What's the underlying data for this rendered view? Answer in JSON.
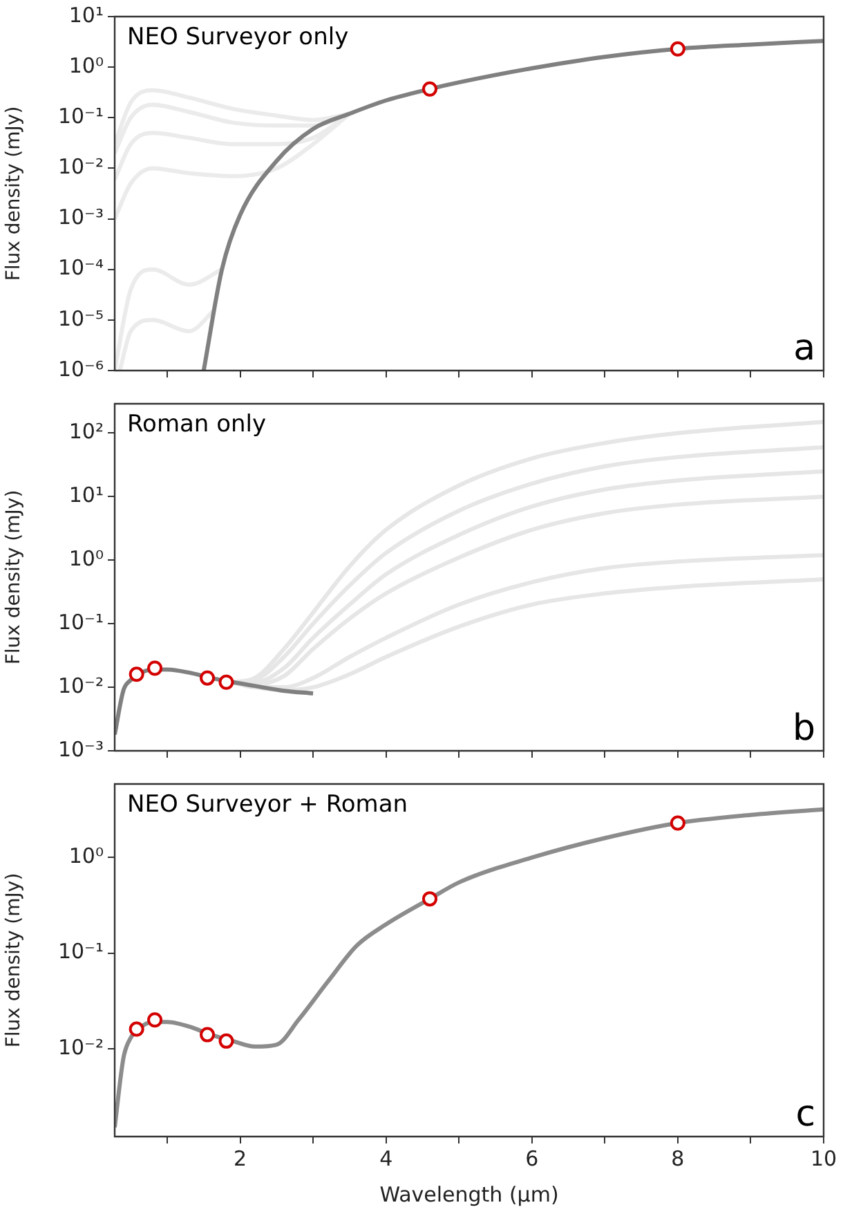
{
  "chart_data": [
    {
      "type": "line",
      "title": "NEO Surveyor only",
      "ylabel": "Flux density (mJy)",
      "annotations": [
        "a"
      ],
      "log": "y",
      "grid": false,
      "legend": false,
      "tick_labels": "y",
      "xlim": [
        0.28,
        10
      ],
      "xticks": [
        1,
        2,
        3,
        4,
        5,
        6,
        7,
        8,
        9,
        10
      ],
      "ylim": [
        1e-06,
        10
      ],
      "yticks": [
        {
          "value": 1e-06,
          "label": "10⁻⁶"
        },
        {
          "value": 1e-05,
          "label": "10⁻⁵"
        },
        {
          "value": 0.0001,
          "label": "10⁻⁴"
        },
        {
          "value": 0.001,
          "label": "10⁻³"
        },
        {
          "value": 0.01,
          "label": "10⁻²"
        },
        {
          "value": 0.1,
          "label": "10⁻¹"
        },
        {
          "value": 1,
          "label": "10⁰"
        },
        {
          "value": 10,
          "label": "10¹"
        }
      ],
      "series": [
        {
          "type": "line",
          "marker": "none",
          "color": "#ebebeb",
          "x": [
            0.28,
            0.5,
            0.8,
            1.3,
            1.9,
            2.5,
            3.0,
            3.5
          ],
          "values": [
            0.03,
            0.2,
            0.35,
            0.25,
            0.15,
            0.11,
            0.09,
            0.12
          ]
        },
        {
          "type": "line",
          "marker": "none",
          "color": "#ebebeb",
          "x": [
            0.28,
            0.5,
            0.8,
            1.3,
            1.9,
            2.5,
            3.0,
            3.5
          ],
          "values": [
            0.02,
            0.1,
            0.18,
            0.13,
            0.08,
            0.07,
            0.07,
            0.12
          ]
        },
        {
          "type": "line",
          "marker": "none",
          "color": "#ebebeb",
          "x": [
            0.28,
            0.5,
            0.8,
            1.3,
            1.9,
            2.5,
            3.0,
            3.5
          ],
          "values": [
            0.006,
            0.03,
            0.05,
            0.04,
            0.03,
            0.03,
            0.04,
            0.12
          ]
        },
        {
          "type": "line",
          "marker": "none",
          "color": "#ebebeb",
          "x": [
            0.28,
            0.5,
            0.8,
            1.3,
            1.9,
            2.5,
            3.0,
            3.5
          ],
          "values": [
            0.001,
            0.005,
            0.01,
            0.008,
            0.007,
            0.01,
            0.03,
            0.12
          ]
        },
        {
          "type": "line",
          "marker": "none",
          "color": "#ebebeb",
          "x": [
            0.28,
            0.5,
            0.8,
            1.3,
            1.75
          ],
          "values": [
            1e-06,
            4e-05,
            0.0001,
            5e-05,
            0.0001
          ]
        },
        {
          "type": "line",
          "marker": "none",
          "color": "#ebebeb",
          "x": [
            0.35,
            0.5,
            0.8,
            1.3,
            1.65
          ],
          "values": [
            1e-06,
            6e-06,
            1e-05,
            6e-06,
            1.6e-05
          ]
        },
        {
          "type": "line",
          "marker": "none",
          "color": "#808080",
          "x": [
            1.5,
            1.75,
            2,
            2.5,
            3,
            3.5,
            4,
            4.6,
            5,
            6,
            7,
            8,
            9,
            10
          ],
          "values": [
            1e-06,
            0.0001,
            0.0012,
            0.014,
            0.06,
            0.12,
            0.22,
            0.37,
            0.5,
            0.95,
            1.6,
            2.3,
            2.8,
            3.3
          ]
        },
        {
          "type": "scatter",
          "marker": "circle",
          "color": "#d40000",
          "x": [
            4.6,
            8
          ],
          "values": [
            0.37,
            2.3
          ]
        }
      ]
    },
    {
      "type": "line",
      "title": "Roman only",
      "ylabel": "Flux density (mJy)",
      "annotations": [
        "b"
      ],
      "log": "y",
      "grid": false,
      "legend": false,
      "tick_labels": "y",
      "xlim": [
        0.28,
        10
      ],
      "xticks": [
        1,
        2,
        3,
        4,
        5,
        6,
        7,
        8,
        9,
        10
      ],
      "ylim": [
        0.001,
        290
      ],
      "yticks": [
        {
          "value": 0.001,
          "label": "10⁻³"
        },
        {
          "value": 0.01,
          "label": "10⁻²"
        },
        {
          "value": 0.1,
          "label": "10⁻¹"
        },
        {
          "value": 1,
          "label": "10⁰"
        },
        {
          "value": 10,
          "label": "10¹"
        },
        {
          "value": 100,
          "label": "10²"
        }
      ],
      "series": [
        {
          "type": "line",
          "marker": "none",
          "color": "#e6e6e6",
          "x": [
            1.9,
            2.2,
            2.6,
            3,
            3.5,
            4,
            5,
            6,
            7,
            8,
            10
          ],
          "values": [
            0.012,
            0.014,
            0.04,
            0.15,
            0.8,
            3,
            15,
            40,
            70,
            100,
            150
          ]
        },
        {
          "type": "line",
          "marker": "none",
          "color": "#e6e6e6",
          "x": [
            1.9,
            2.2,
            2.6,
            3,
            3.5,
            4,
            5,
            6,
            7,
            8,
            10
          ],
          "values": [
            0.012,
            0.013,
            0.03,
            0.1,
            0.4,
            1.3,
            6,
            16,
            30,
            42,
            60
          ]
        },
        {
          "type": "line",
          "marker": "none",
          "color": "#e6e6e6",
          "x": [
            1.9,
            2.2,
            2.6,
            3,
            3.5,
            4,
            5,
            6,
            7,
            8,
            10
          ],
          "values": [
            0.012,
            0.012,
            0.02,
            0.06,
            0.2,
            0.6,
            2.5,
            7,
            13,
            18,
            25
          ]
        },
        {
          "type": "line",
          "marker": "none",
          "color": "#e6e6e6",
          "x": [
            1.9,
            2.2,
            2.6,
            3,
            3.5,
            4,
            5,
            6,
            7,
            8,
            10
          ],
          "values": [
            0.012,
            0.011,
            0.015,
            0.04,
            0.12,
            0.3,
            1.1,
            3,
            5.5,
            7.5,
            10
          ]
        },
        {
          "type": "line",
          "marker": "none",
          "color": "#e6e6e6",
          "x": [
            1.9,
            2.2,
            2.6,
            3,
            3.5,
            4,
            5,
            6,
            7,
            8,
            10
          ],
          "values": [
            0.012,
            0.01,
            0.01,
            0.014,
            0.03,
            0.06,
            0.2,
            0.45,
            0.75,
            0.95,
            1.2
          ]
        },
        {
          "type": "line",
          "marker": "none",
          "color": "#e6e6e6",
          "x": [
            1.9,
            2.2,
            2.6,
            3,
            3.5,
            4,
            5,
            6,
            7,
            8,
            10
          ],
          "values": [
            0.012,
            0.01,
            0.009,
            0.01,
            0.016,
            0.03,
            0.09,
            0.2,
            0.3,
            0.38,
            0.5
          ]
        },
        {
          "type": "line",
          "marker": "none",
          "color": "#808080",
          "x": [
            0.28,
            0.4,
            0.5,
            0.6,
            0.8,
            1.0,
            1.3,
            1.6,
            1.9,
            2.2,
            2.6,
            3.0
          ],
          "values": [
            0.0018,
            0.009,
            0.013,
            0.016,
            0.019,
            0.019,
            0.017,
            0.014,
            0.012,
            0.0105,
            0.0088,
            0.008
          ]
        },
        {
          "type": "scatter",
          "marker": "circle",
          "color": "#d40000",
          "x": [
            0.58,
            0.83,
            1.55,
            1.81
          ],
          "values": [
            0.016,
            0.02,
            0.014,
            0.012
          ]
        }
      ]
    },
    {
      "type": "line",
      "title": "NEO Surveyor + Roman",
      "xlabel": "Wavelength (μm)",
      "ylabel": "Flux density (mJy)",
      "annotations": [
        "c"
      ],
      "log": "y",
      "grid": false,
      "legend": false,
      "xlim": [
        0.28,
        10
      ],
      "xticks": [
        {
          "value": 1,
          "label": null
        },
        {
          "value": 2,
          "label": "2"
        },
        {
          "value": 3,
          "label": null
        },
        {
          "value": 4,
          "label": "4"
        },
        {
          "value": 5,
          "label": null
        },
        {
          "value": 6,
          "label": "6"
        },
        {
          "value": 7,
          "label": null
        },
        {
          "value": 8,
          "label": "8"
        },
        {
          "value": 9,
          "label": null
        },
        {
          "value": 10,
          "label": "10"
        }
      ],
      "ylim": [
        0.0012,
        5.9
      ],
      "yticks": [
        {
          "value": 0.01,
          "label": "10⁻²"
        },
        {
          "value": 0.1,
          "label": "10⁻¹"
        },
        {
          "value": 1,
          "label": "10⁰"
        }
      ],
      "series": [
        {
          "type": "line",
          "marker": "none",
          "color": "#8c8c8c",
          "x": [
            0.28,
            0.4,
            0.5,
            0.6,
            0.8,
            1.0,
            1.3,
            1.6,
            1.9,
            2.2,
            2.5,
            2.8,
            3.2,
            3.6,
            4.0,
            4.6,
            5,
            6,
            7,
            8,
            9,
            10
          ],
          "values": [
            0.0015,
            0.008,
            0.013,
            0.016,
            0.019,
            0.019,
            0.017,
            0.014,
            0.012,
            0.0105,
            0.011,
            0.02,
            0.05,
            0.12,
            0.2,
            0.37,
            0.55,
            1.0,
            1.6,
            2.3,
            2.8,
            3.2
          ]
        },
        {
          "type": "scatter",
          "marker": "circle",
          "color": "#d40000",
          "x": [
            0.58,
            0.83,
            1.55,
            1.81,
            4.6,
            8
          ],
          "values": [
            0.016,
            0.02,
            0.014,
            0.012,
            0.37,
            2.3
          ]
        }
      ]
    }
  ]
}
